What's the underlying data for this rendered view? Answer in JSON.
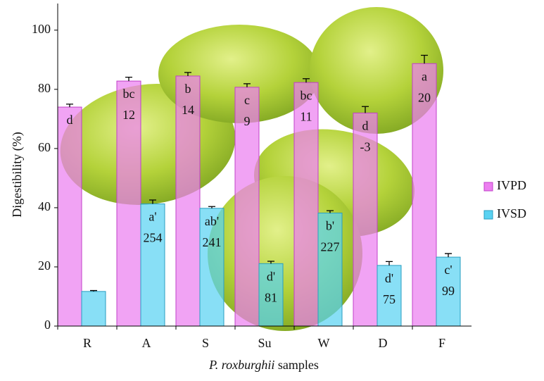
{
  "chart_data": {
    "type": "bar",
    "ylabel": "Digestibility (%)",
    "xlabel_italic": "P. roxburghii",
    "xlabel_rest": "samples",
    "categories": [
      "R",
      "A",
      "S",
      "Su",
      "W",
      "D",
      "F"
    ],
    "series": [
      {
        "name": "IVPD",
        "color": "#ec7ff0",
        "stroke": "#c040c8",
        "values": [
          74,
          82.8,
          84.5,
          80.7,
          82.3,
          72,
          88.7
        ],
        "errors": [
          1,
          1.3,
          1.2,
          1.2,
          1.3,
          2.2,
          2.8
        ],
        "letters": [
          "d",
          "bc",
          "b",
          "c",
          "bc",
          "d",
          "a"
        ],
        "changes": [
          null,
          12,
          14,
          9,
          11,
          -3,
          20
        ]
      },
      {
        "name": "IVSD",
        "color": "#5ad2f2",
        "stroke": "#2a9ec0",
        "values": [
          11.7,
          41.3,
          39.8,
          21.1,
          38.2,
          20.5,
          23.3
        ],
        "errors": [
          0.3,
          1.3,
          0.6,
          0.8,
          0.8,
          1.3,
          1.2
        ],
        "letters": [
          null,
          "a'",
          "ab'",
          "d'",
          "b'",
          "d'",
          "c'"
        ],
        "changes": [
          null,
          254,
          241,
          81,
          227,
          75,
          99
        ]
      }
    ],
    "ylim": [
      0,
      109
    ],
    "yticks": [
      0,
      20,
      40,
      60,
      80,
      100
    ]
  }
}
